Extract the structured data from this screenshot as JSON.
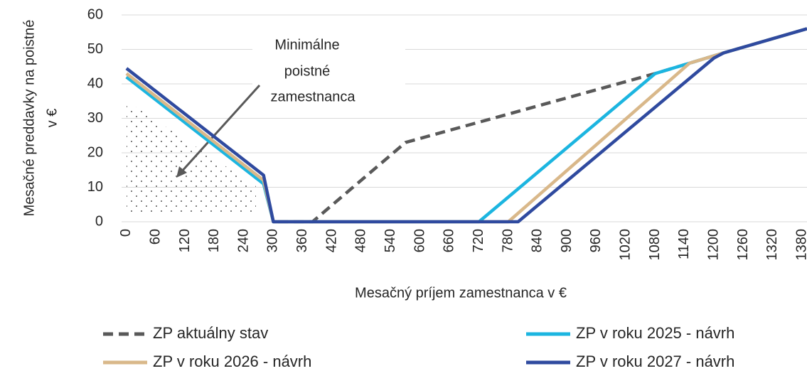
{
  "chart_data": {
    "type": "line",
    "xlabel": "Mesačný príjem zamestnanca v €",
    "ylabel": [
      "Mesačné preddavky na poistné",
      "v €"
    ],
    "annotation": [
      "Minimálne",
      "poistné",
      "zamestnanca"
    ],
    "xlim": [
      -10,
      1390
    ],
    "ylim": [
      0,
      60
    ],
    "xticks": [
      0,
      60,
      120,
      180,
      240,
      300,
      360,
      420,
      480,
      540,
      600,
      660,
      720,
      780,
      840,
      900,
      960,
      1020,
      1080,
      1140,
      1200,
      1260,
      1320,
      1380
    ],
    "yticks": [
      0,
      10,
      20,
      30,
      40,
      50,
      60
    ],
    "grid": true,
    "legend": "bottom",
    "series": [
      {
        "name": "ZP aktuálny stav",
        "color": "#595959",
        "dashed": true,
        "x": [
          0,
          280,
          300,
          380,
          570,
          1080,
          1150,
          1220,
          1390
        ],
        "values": [
          42,
          12,
          0,
          0,
          23,
          43,
          46,
          49,
          56
        ]
      },
      {
        "name": "ZP v roku 2025 - návrh",
        "color": "#1cb5e0",
        "dashed": false,
        "x": [
          0,
          280,
          300,
          720,
          1080,
          1150,
          1220,
          1390
        ],
        "values": [
          42,
          11,
          0,
          0,
          43,
          46,
          49,
          56
        ]
      },
      {
        "name": "ZP v roku 2026 - návrh",
        "color": "#d9b88a",
        "dashed": false,
        "x": [
          0,
          280,
          300,
          780,
          1150,
          1220,
          1390
        ],
        "values": [
          43,
          12,
          0,
          0,
          46,
          49,
          56
        ]
      },
      {
        "name": "ZP v roku 2027 - návrh",
        "color": "#2f4a9f",
        "dashed": false,
        "x": [
          0,
          280,
          300,
          800,
          1200,
          1220,
          1390
        ],
        "values": [
          44.5,
          13.5,
          0,
          0,
          47.5,
          49,
          56
        ]
      }
    ]
  }
}
